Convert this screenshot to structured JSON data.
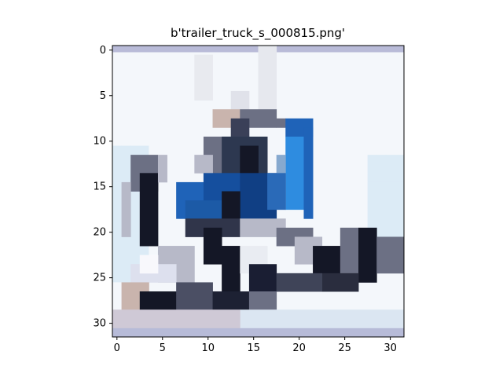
{
  "figure": {
    "title": "b'trailer_truck_s_000815.png'"
  },
  "image": {
    "description_label": "trailer truck",
    "grid_size": 32,
    "x_ticks": [
      "0",
      "5",
      "10",
      "15",
      "20",
      "25",
      "30"
    ],
    "y_ticks": [
      "0",
      "5",
      "10",
      "15",
      "20",
      "25",
      "30"
    ],
    "colors": {
      "top_band": "#b9bbd8",
      "bottom_band": "#b7bbd8",
      "sky": "#f4f7fb",
      "sky_blue": "#dcebf6",
      "cab_blue": "#1f63b8",
      "bright_blue": "#2e8ce0",
      "dark": "#141726",
      "mid_gray": "#6c7084",
      "light_gray": "#b7b9c8",
      "tan": "#c9b4ad",
      "white": "#f8f8fc"
    }
  }
}
